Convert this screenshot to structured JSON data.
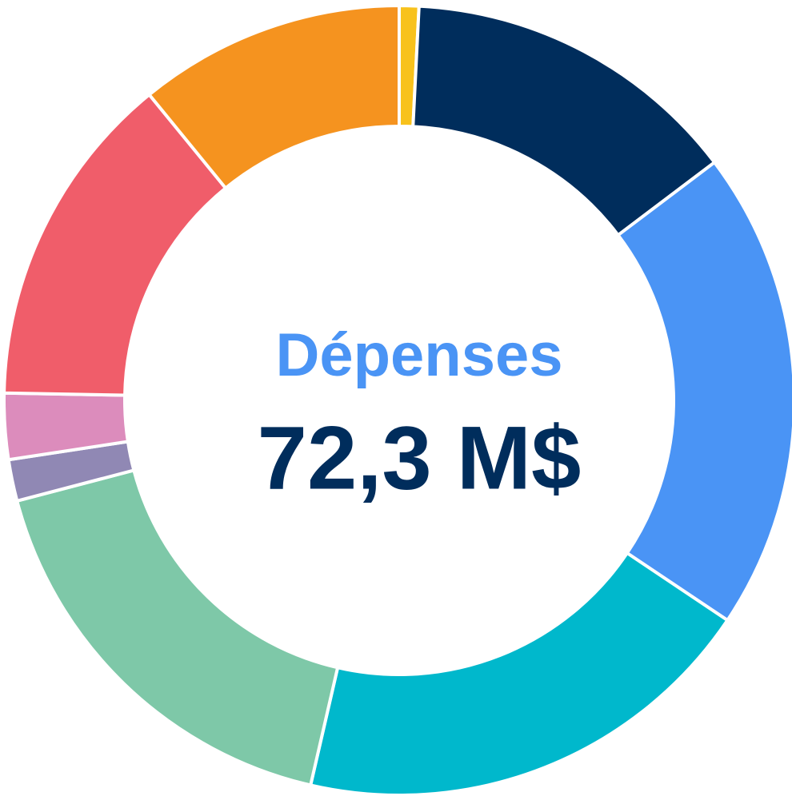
{
  "chart_data": {
    "type": "donut",
    "title": "Dépenses",
    "total_label": "72,3 M$",
    "values": [
      0.8,
      13.9,
      19.7,
      19.2,
      17.3,
      1.7,
      2.7,
      13.8,
      10.9
    ],
    "colors": [
      "#f8c21c",
      "#002d5c",
      "#4a94f5",
      "#00b8cc",
      "#7ec8a8",
      "#9088b4",
      "#dc8cbc",
      "#f05d6a",
      "#f5931f"
    ],
    "title_color": "#4a94f5",
    "total_color": "#002d5c"
  }
}
